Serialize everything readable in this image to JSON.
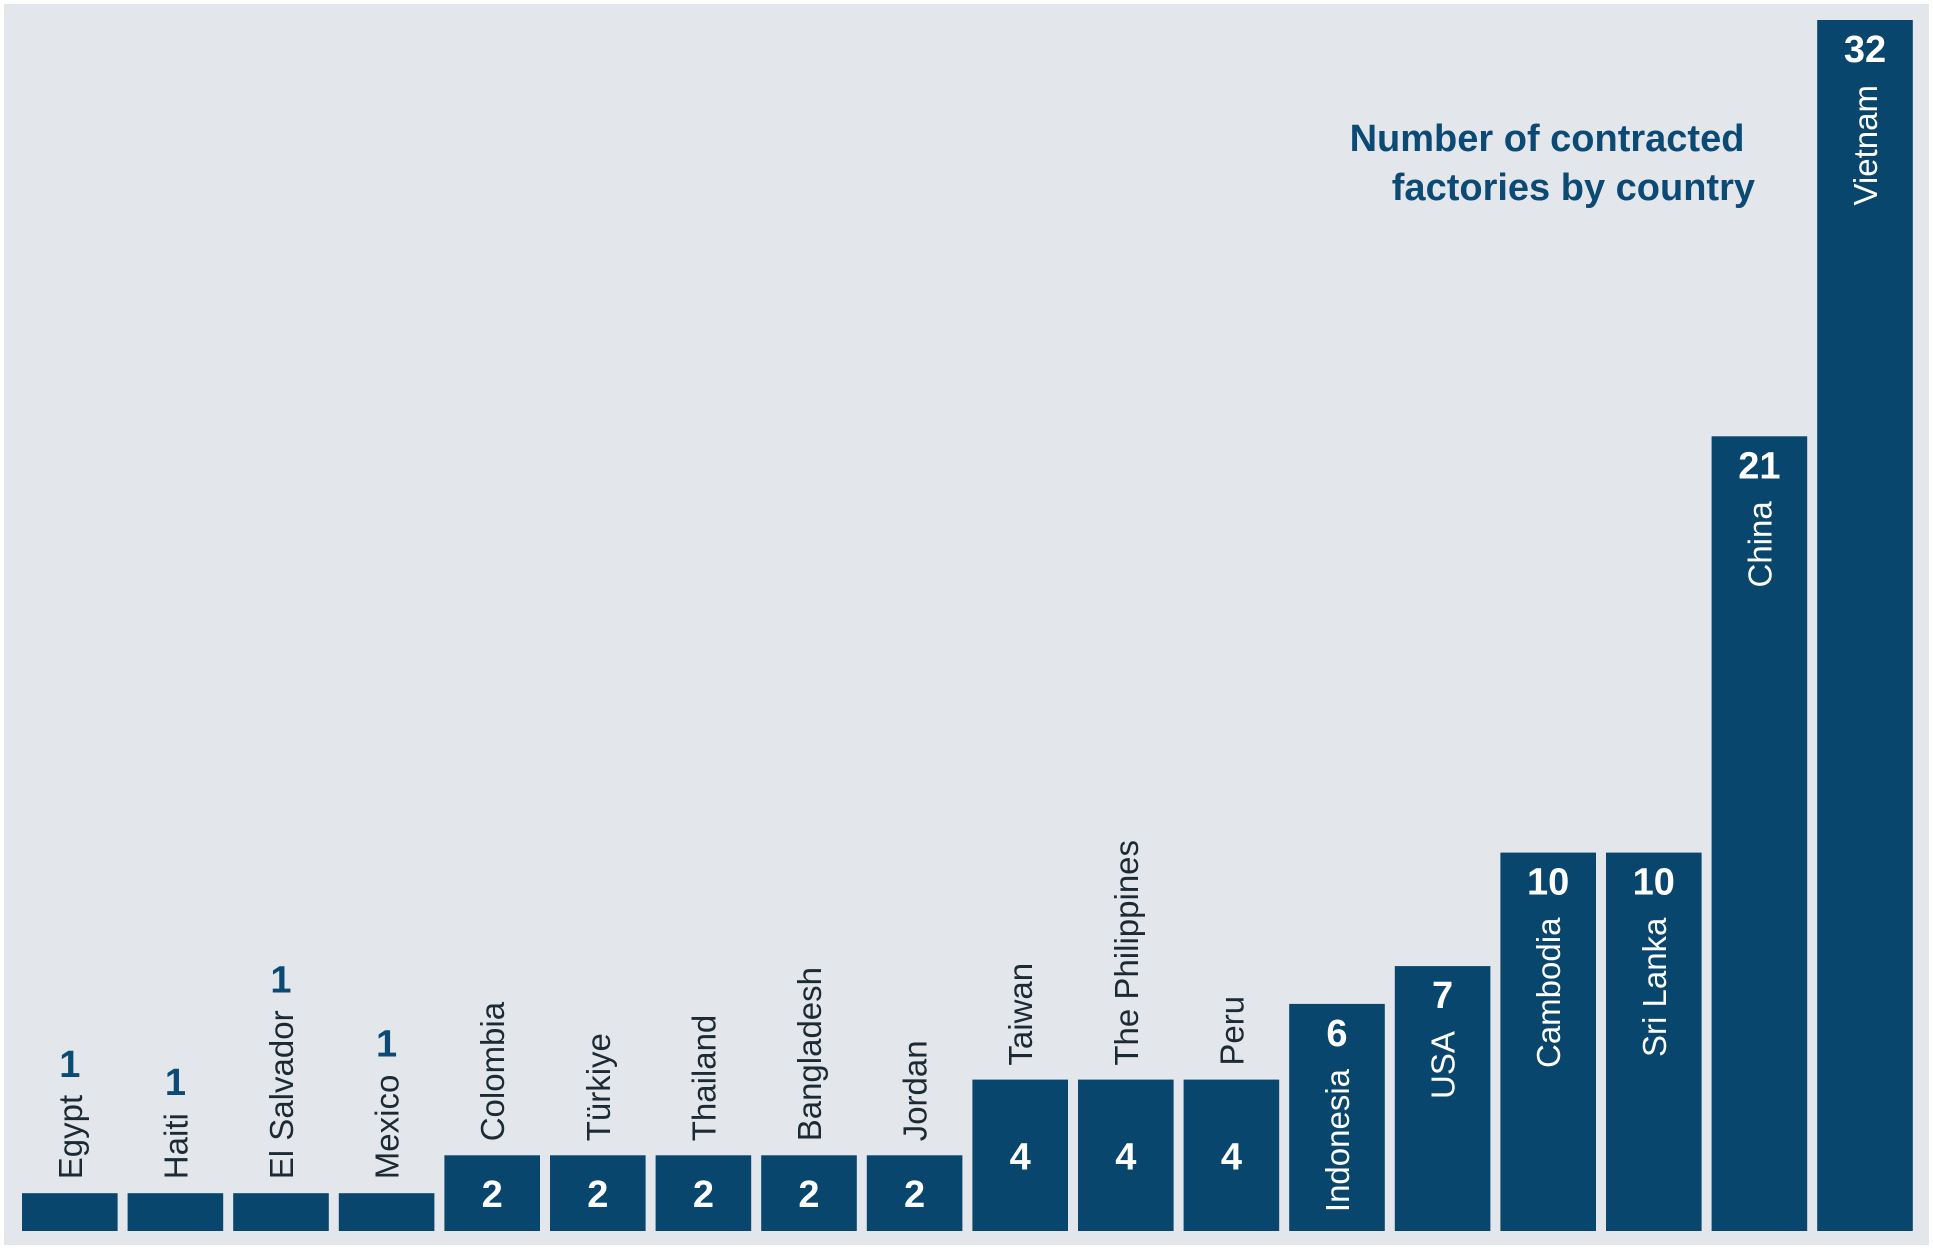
{
  "chart_data": {
    "type": "bar",
    "title_lines": [
      "Number of contracted",
      "factories by country"
    ],
    "categories": [
      "Egypt",
      "Haiti",
      "El Salvador",
      "Mexico",
      "Colombia",
      "Türkiye",
      "Thailand",
      "Bangladesh",
      "Jordan",
      "Taiwan",
      "The Philippines",
      "Peru",
      "Indonesia",
      "USA",
      "Cambodia",
      "Sri Lanka",
      "China",
      "Vietnam"
    ],
    "values": [
      1,
      1,
      1,
      1,
      2,
      2,
      2,
      2,
      2,
      4,
      4,
      4,
      6,
      7,
      10,
      10,
      21,
      32
    ],
    "xlabel": "",
    "ylabel": "",
    "grid": false,
    "colors": {
      "background": "#e3e7eb",
      "bar": "#08466e",
      "label_on_bar": "#ffffff",
      "label_outside": "#1c2a36",
      "value_outside": "#0a4a75",
      "title": "#0a4a75"
    }
  }
}
